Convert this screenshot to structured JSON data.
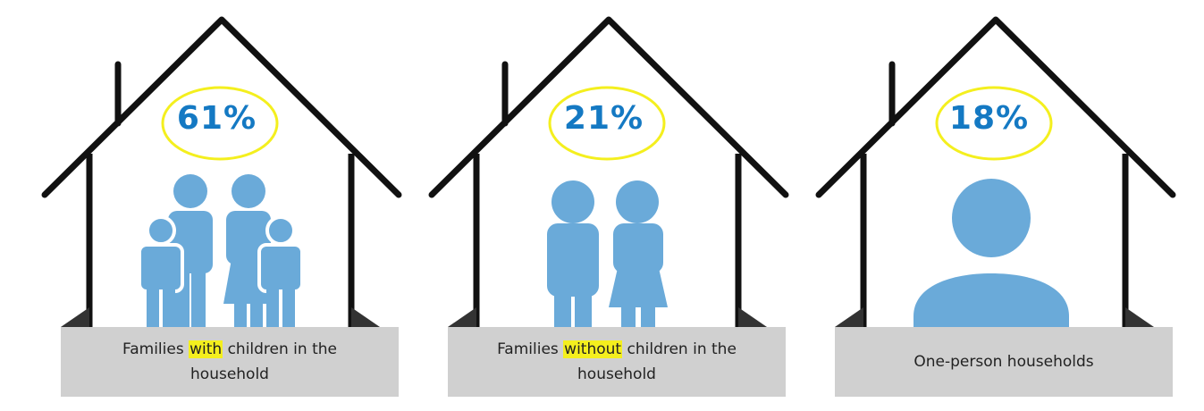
{
  "colors": {
    "roof_outline": "#111111",
    "figure_blue": "#6aaad9",
    "percent_blue": "#1479c3",
    "halo_yellow": "#f4ef1e",
    "base_gray": "#d0d0d0",
    "highlight": "#f4ef1e"
  },
  "houses": [
    {
      "percent": "61%",
      "label_before": "Families ",
      "label_highlight": "with",
      "label_after": " children in the household",
      "icon": "family-with-children-icon"
    },
    {
      "percent": "21%",
      "label_before": "Families ",
      "label_highlight": "without",
      "label_after": " children in the household",
      "icon": "couple-icon"
    },
    {
      "percent": "18%",
      "label_before": "One-person households",
      "label_highlight": "",
      "label_after": "",
      "icon": "single-person-icon"
    }
  ]
}
